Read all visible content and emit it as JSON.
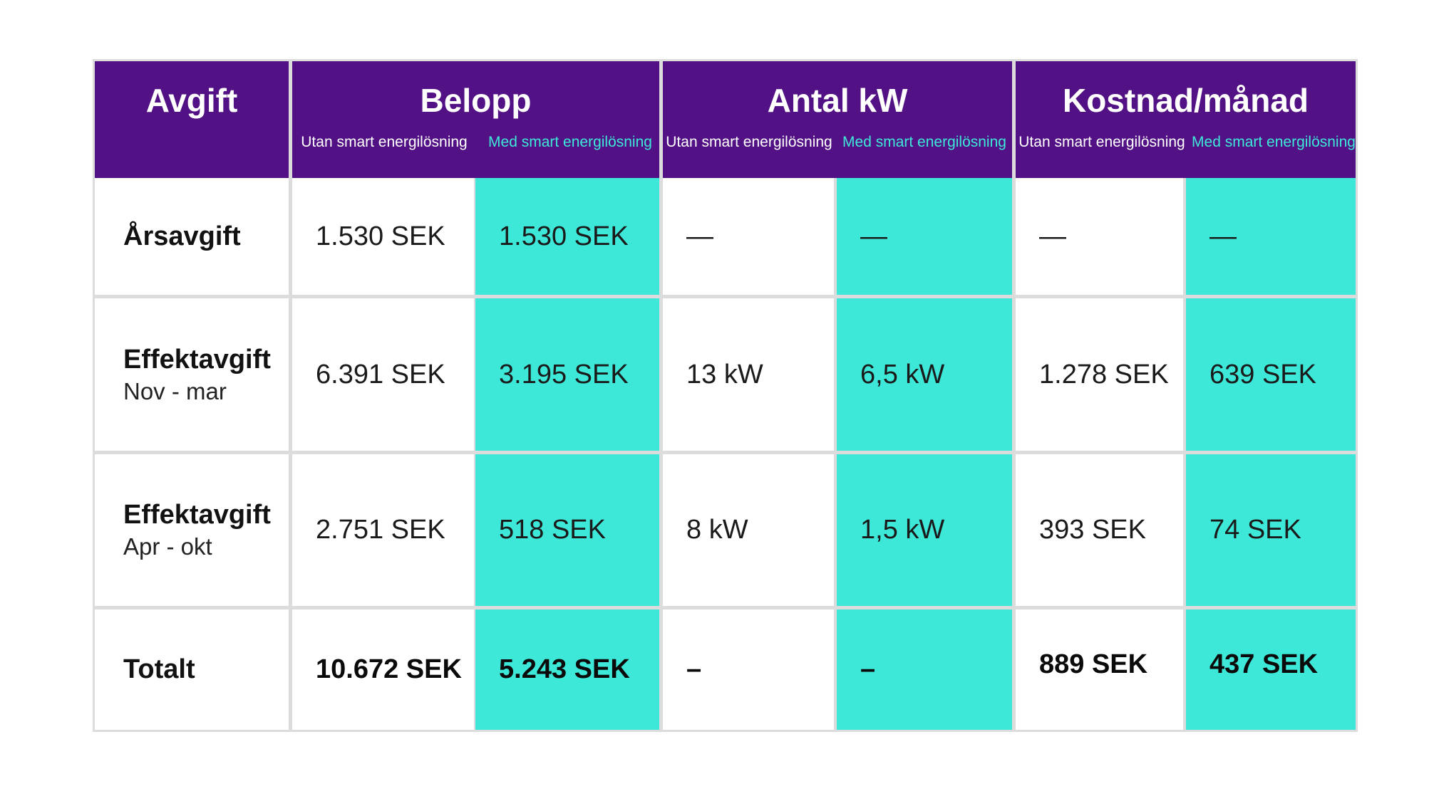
{
  "header": {
    "fee": "Avgift",
    "groups": [
      "Belopp",
      "Antal kW",
      "Kostnad/månad"
    ],
    "sub_without": "Utan smart energilösning",
    "sub_with": "Med smart energilösning"
  },
  "rows": [
    {
      "label": "Årsavgift",
      "sublabel": "",
      "values": [
        "1.530 SEK",
        "1.530 SEK",
        "—",
        "—",
        "—",
        "—"
      ]
    },
    {
      "label": "Effektavgift",
      "sublabel": "Nov - mar",
      "values": [
        "6.391 SEK",
        "3.195 SEK",
        "13 kW",
        "6,5 kW",
        "1.278 SEK",
        "639 SEK"
      ]
    },
    {
      "label": "Effektavgift",
      "sublabel": "Apr - okt",
      "values": [
        "2.751 SEK",
        "518 SEK",
        "8 kW",
        "1,5 kW",
        "393 SEK",
        "74 SEK"
      ]
    },
    {
      "label": "Totalt",
      "sublabel": "",
      "values": [
        "10.672 SEK",
        "5.243 SEK",
        "–",
        "–",
        "889 SEK",
        "437 SEK"
      ]
    }
  ],
  "colors": {
    "header_bg": "#521184",
    "accent": "#3de8d8",
    "grid": "#dcdcdc"
  }
}
